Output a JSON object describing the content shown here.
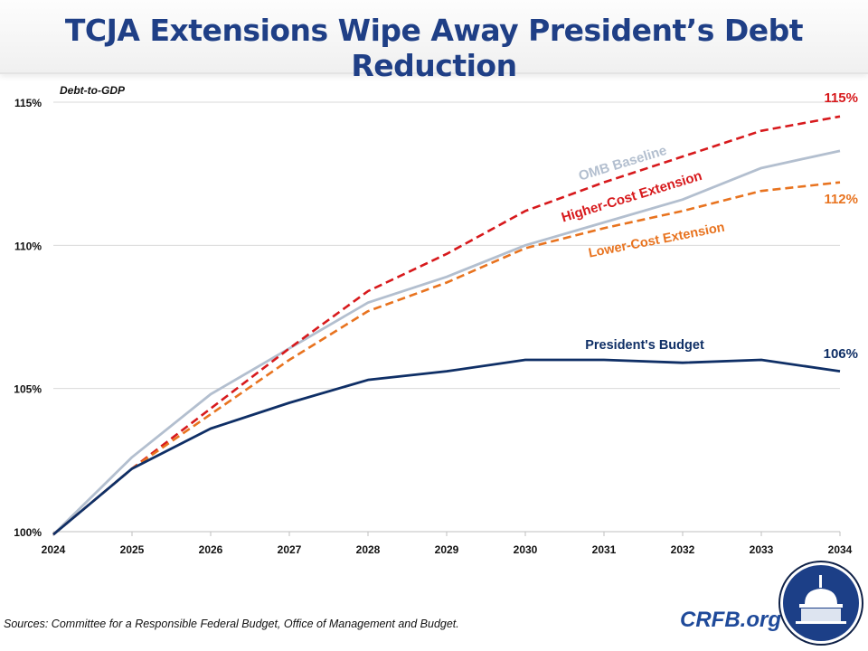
{
  "title": "TCJA Extensions Wipe Away President’s Debt Reduction",
  "source": "Sources: Committee for a Responsible Federal Budget, Office of Management and Budget.",
  "brand": "CRFB.org",
  "chart_data": {
    "type": "line",
    "ylabel": "Debt-to-GDP",
    "ylim": [
      100,
      115
    ],
    "yticks": [
      "100%",
      "105%",
      "110%",
      "115%"
    ],
    "ytick_values": [
      100,
      105,
      110,
      115
    ],
    "x": [
      "2024",
      "2025",
      "2026",
      "2027",
      "2028",
      "2029",
      "2030",
      "2031",
      "2032",
      "2033",
      "2034"
    ],
    "grid": true,
    "series": [
      {
        "name": "OMB Baseline",
        "color": "#b3bfcf",
        "dashed": false,
        "values": [
          99.9,
          102.6,
          104.8,
          106.4,
          108.0,
          108.9,
          110.0,
          110.8,
          111.6,
          112.7,
          113.3
        ],
        "end_label": ""
      },
      {
        "name": "Higher-Cost Extension",
        "color": "#d7191c",
        "dashed": true,
        "values": [
          99.9,
          102.2,
          104.3,
          106.4,
          108.4,
          109.7,
          111.2,
          112.2,
          113.1,
          114.0,
          114.5
        ],
        "end_label": "115%"
      },
      {
        "name": "Lower-Cost Extension",
        "color": "#e8731f",
        "dashed": true,
        "values": [
          99.9,
          102.2,
          104.1,
          106.0,
          107.7,
          108.7,
          109.9,
          110.6,
          111.2,
          111.9,
          112.2
        ],
        "end_label": "112%"
      },
      {
        "name": "President's Budget",
        "color": "#0f2f66",
        "dashed": false,
        "values": [
          99.9,
          102.2,
          103.6,
          104.5,
          105.3,
          105.6,
          106.0,
          106.0,
          105.9,
          106.0,
          105.6
        ],
        "end_label": "106%"
      }
    ]
  }
}
